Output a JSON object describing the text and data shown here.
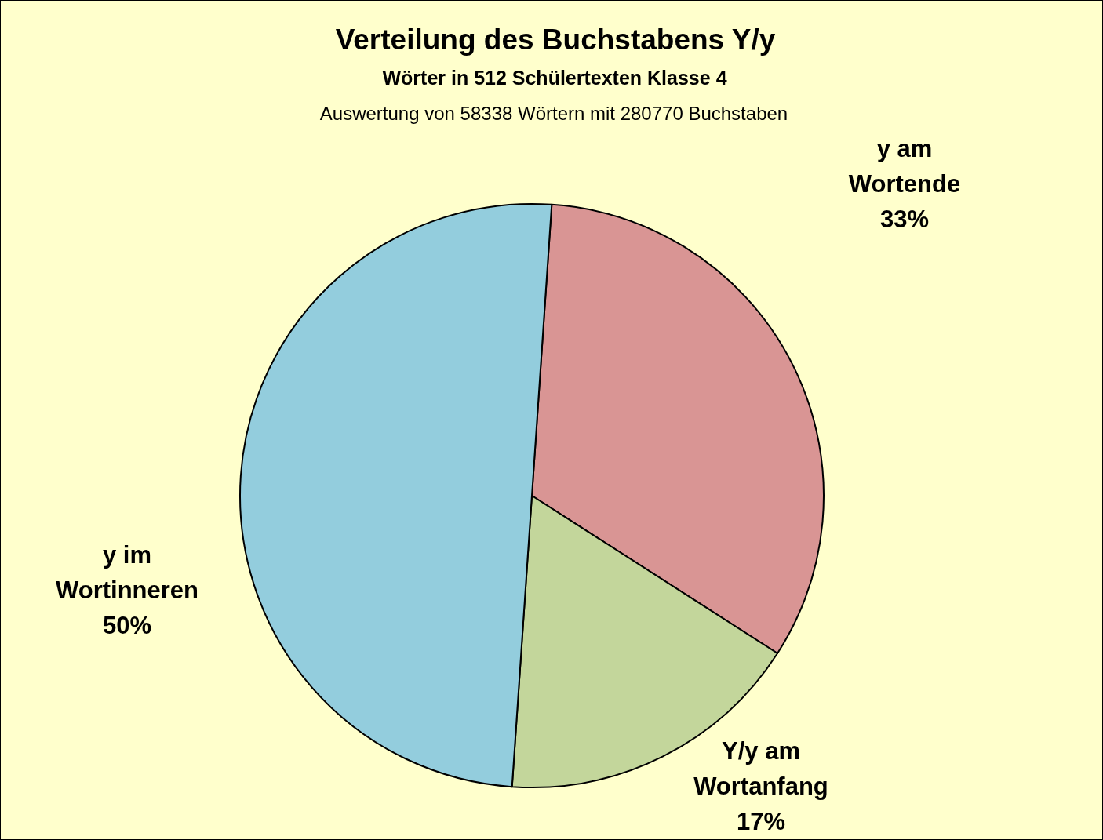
{
  "chart_data": {
    "type": "pie",
    "title": "Verteilung des Buchstabens Y/y",
    "subtitle": "Wörter in 512 Schülertexten Klasse 4",
    "annotations": [
      "Auswertung von 58338 Wörtern mit 280770 Buchstaben"
    ],
    "categories": [
      "y am Wortende",
      "Y/y am Wortanfang",
      "y im Wortinneren"
    ],
    "values": [
      33,
      17,
      50
    ],
    "colors": [
      "#d99594",
      "#c3d69b",
      "#93cddd"
    ],
    "value_labels": [
      "33%",
      "17%",
      "50%"
    ]
  }
}
